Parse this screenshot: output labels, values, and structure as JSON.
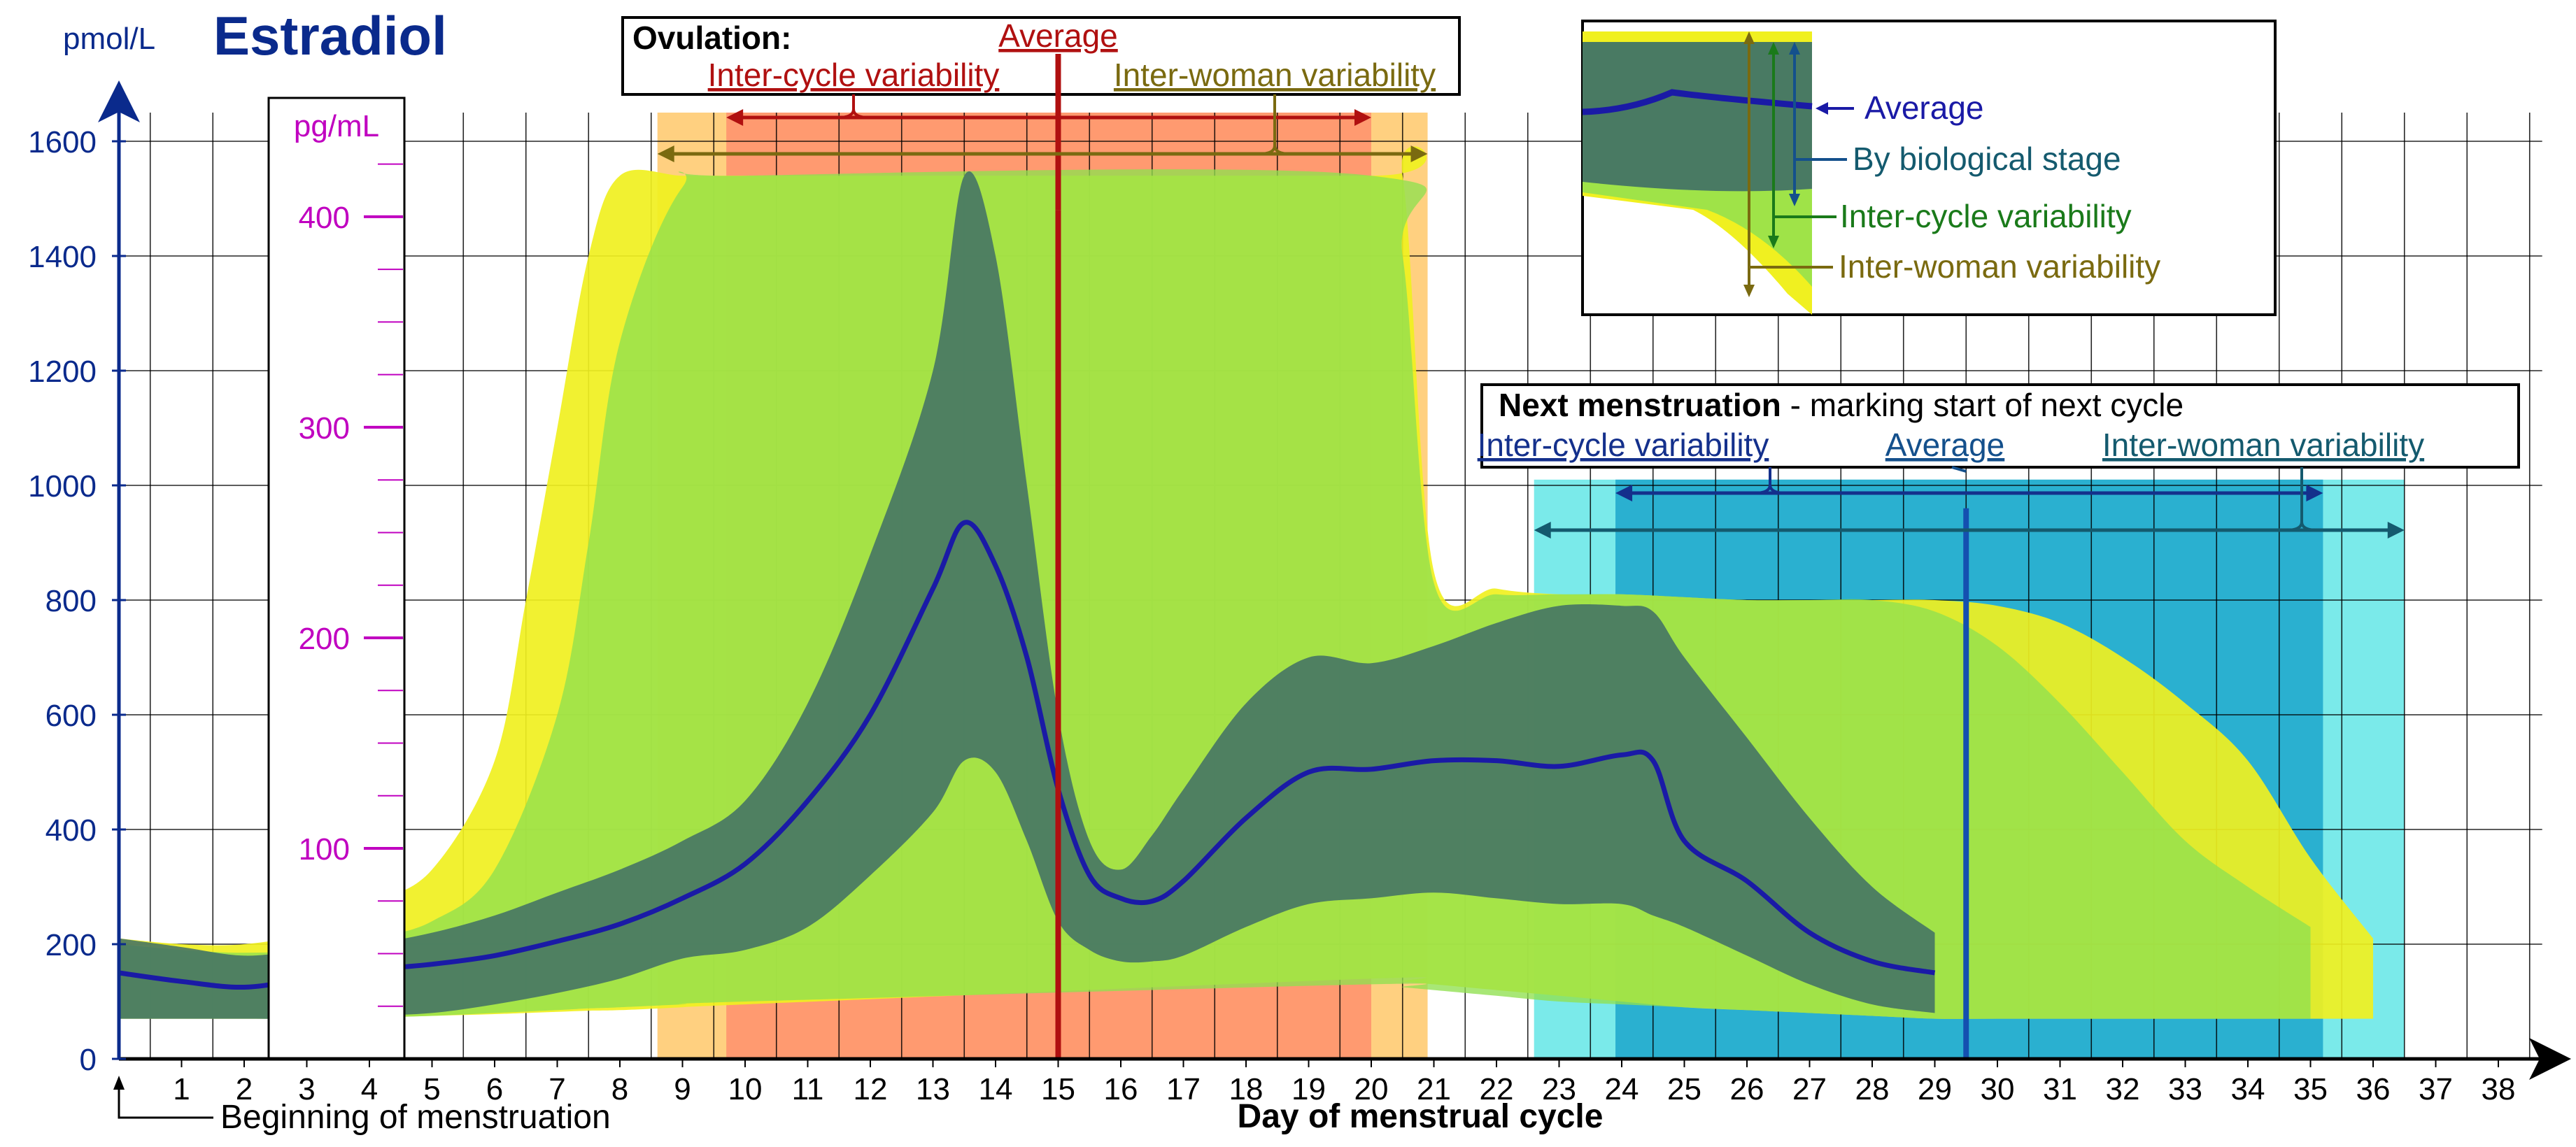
{
  "chart_data": {
    "type": "area",
    "title": "Estradiol",
    "xlabel": "Day of menstrual cycle",
    "ylabel": "pmol/L",
    "ylabel_secondary": "pg/mL",
    "xlim": [
      0,
      39
    ],
    "ylim": [
      0,
      1650
    ],
    "x_ticks": [
      1,
      2,
      3,
      4,
      5,
      6,
      7,
      8,
      9,
      10,
      11,
      12,
      13,
      14,
      15,
      16,
      17,
      18,
      19,
      20,
      21,
      22,
      23,
      24,
      25,
      26,
      27,
      28,
      29,
      30,
      31,
      32,
      33,
      34,
      35,
      36,
      37,
      38
    ],
    "y_ticks": [
      0,
      200,
      400,
      600,
      800,
      1000,
      1200,
      1400,
      1600
    ],
    "y2_ticks": [
      100,
      200,
      300,
      400
    ],
    "grid": true,
    "colors": {
      "primary_axis": "#0a2a8c",
      "secondary_axis": "#c000c0",
      "average": "#1a1aa6",
      "by_stage": "#3f6e66",
      "inter_cycle": "#90e050",
      "inter_woman": "#f0f020",
      "ovulation_inter_cycle": "#ff9a70",
      "ovulation_inter_woman": "#ffd080",
      "ovulation_line": "#b01010",
      "menstruation_inter_cycle": "#2ab0d0",
      "menstruation_inter_woman": "#7aeaea",
      "menstruation_line": "#1450b0",
      "inter_woman_label": "#7a6a10"
    },
    "series": [
      {
        "name": "Average",
        "x": [
          0,
          1,
          2,
          3,
          4,
          5,
          6,
          7,
          8,
          9,
          10,
          11,
          12,
          13,
          13.5,
          14,
          14.5,
          15,
          15.5,
          16,
          16.5,
          17,
          18,
          19,
          20,
          21,
          22,
          23,
          24,
          24.5,
          25,
          26,
          27,
          28,
          29
        ],
        "y": [
          150,
          135,
          125,
          140,
          155,
          165,
          180,
          205,
          235,
          280,
          340,
          450,
          600,
          820,
          935,
          860,
          700,
          470,
          320,
          280,
          275,
          310,
          420,
          500,
          505,
          520,
          520,
          510,
          530,
          520,
          380,
          310,
          220,
          170,
          150
        ]
      },
      {
        "name": "By biological stage",
        "x": [
          0,
          1,
          2,
          3,
          4,
          5,
          6,
          7,
          8,
          9,
          10,
          11,
          12,
          13,
          13.5,
          14,
          14.5,
          15,
          15.5,
          16,
          16.5,
          17,
          18,
          19,
          20,
          21,
          22,
          23,
          24,
          24.5,
          25,
          26,
          27,
          28,
          29
        ],
        "y_low": [
          70,
          70,
          70,
          70,
          75,
          80,
          95,
          115,
          140,
          175,
          190,
          230,
          320,
          430,
          520,
          500,
          380,
          240,
          190,
          170,
          170,
          180,
          230,
          270,
          280,
          290,
          280,
          270,
          270,
          250,
          230,
          180,
          130,
          95,
          80
        ],
        "y_high": [
          210,
          195,
          180,
          190,
          200,
          220,
          250,
          290,
          330,
          380,
          450,
          620,
          880,
          1200,
          1540,
          1400,
          1000,
          600,
          380,
          330,
          390,
          470,
          620,
          700,
          690,
          720,
          760,
          790,
          790,
          780,
          700,
          560,
          420,
          300,
          220
        ]
      },
      {
        "name": "Inter-cycle variability",
        "x": [
          0,
          1,
          2,
          3,
          4,
          5,
          6,
          7,
          7.5,
          8,
          9,
          10,
          20,
          20.5,
          21,
          22,
          23,
          24,
          25,
          26,
          27,
          28,
          29,
          30,
          31,
          32,
          33,
          34,
          35
        ],
        "y_low": [
          70,
          70,
          70,
          70,
          72,
          75,
          80,
          85,
          88,
          90,
          95,
          100,
          130,
          125,
          120,
          110,
          100,
          95,
          90,
          85,
          80,
          75,
          70,
          70,
          70,
          70,
          70,
          70,
          70
        ],
        "y_high": [
          200,
          190,
          185,
          190,
          210,
          240,
          330,
          600,
          900,
          1250,
          1520,
          1540,
          1540,
          1400,
          830,
          810,
          810,
          810,
          805,
          800,
          800,
          800,
          780,
          720,
          620,
          500,
          380,
          300,
          230
        ]
      },
      {
        "name": "Inter-woman variability",
        "x": [
          0,
          1,
          2,
          3,
          4,
          5,
          6,
          6.5,
          7,
          7.5,
          8,
          9,
          10,
          20,
          20.5,
          21,
          22,
          23,
          24,
          25,
          26,
          27,
          28,
          29,
          30,
          31,
          32,
          33,
          34,
          35,
          36
        ],
        "y_low": [
          70,
          70,
          70,
          70,
          72,
          75,
          78,
          80,
          82,
          84,
          85,
          90,
          95,
          140,
          135,
          130,
          120,
          110,
          100,
          90,
          85,
          80,
          75,
          70,
          70,
          70,
          70,
          70,
          70,
          70,
          70
        ],
        "y_high": [
          210,
          200,
          200,
          220,
          270,
          330,
          520,
          800,
          1100,
          1400,
          1540,
          1540,
          1540,
          1540,
          1540,
          850,
          820,
          810,
          810,
          805,
          800,
          800,
          800,
          800,
          790,
          760,
          700,
          620,
          520,
          350,
          210
        ]
      }
    ],
    "ovulation": {
      "title": "Ovulation:",
      "average_label": "Average",
      "inter_cycle_label": "Inter-cycle variability",
      "inter_woman_label": "Inter-woman variability",
      "average_day": 15,
      "inter_cycle_range": [
        9.7,
        20
      ],
      "inter_woman_range": [
        8.6,
        20.9
      ]
    },
    "next_menstruation": {
      "title": "Next menstruation",
      "subtitle": " - marking start of next cycle",
      "inter_cycle_label": "Inter-cycle variability",
      "average_label": "Average",
      "inter_woman_label": "Inter-woman variability",
      "average_day": 29.5,
      "inter_cycle_range": [
        23.9,
        35.2
      ],
      "inter_woman_range": [
        22.6,
        36.5
      ]
    },
    "legend": {
      "average": "Average",
      "by_stage": "By biological stage",
      "inter_cycle": "Inter-cycle variability",
      "inter_woman": "Inter-woman variability"
    },
    "annotations": {
      "beginning": "Beginning of menstruation"
    }
  }
}
